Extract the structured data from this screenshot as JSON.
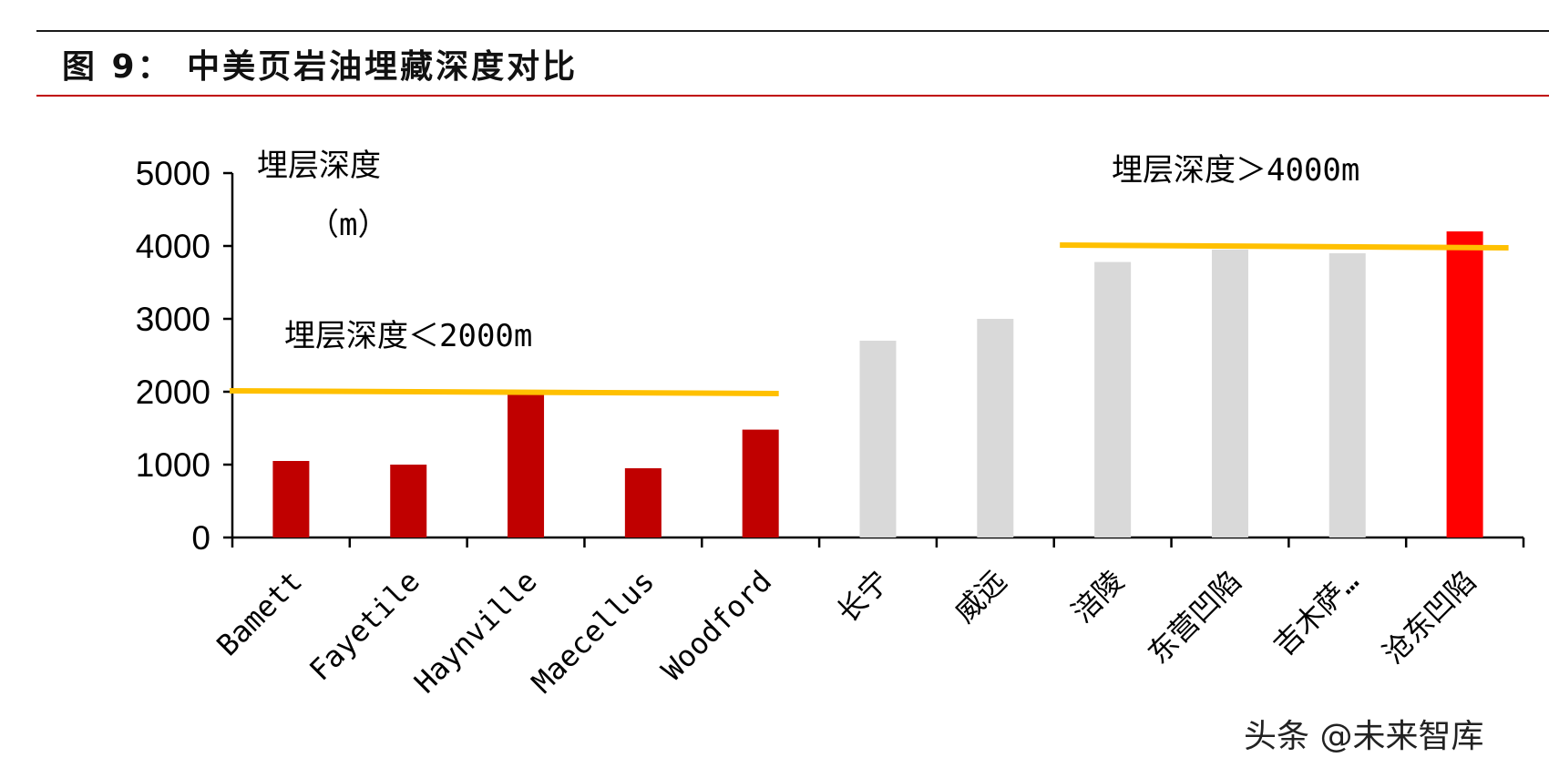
{
  "figure": {
    "title": "图 9： 中美页岩油埋藏深度对比"
  },
  "chart_data": {
    "type": "bar",
    "categories": [
      "Bamett",
      "Fayetile",
      "Haynville",
      "Maecellus",
      "Woodford",
      "长宁",
      "威远",
      "涪陵",
      "东营凹陷",
      "吉木萨…",
      "沧东凹陷"
    ],
    "values": [
      1050,
      1000,
      2000,
      950,
      1480,
      2700,
      3000,
      3780,
      3950,
      3900,
      4200
    ],
    "bar_colors": [
      "#c00000",
      "#c00000",
      "#c00000",
      "#c00000",
      "#c00000",
      "#d9d9d9",
      "#d9d9d9",
      "#d9d9d9",
      "#d9d9d9",
      "#d9d9d9",
      "#ff0000"
    ],
    "ylim": [
      0,
      5000
    ],
    "yticks": [
      "0",
      "1000",
      "2000",
      "3000",
      "4000",
      "5000"
    ],
    "ylabel_line1": "埋层深度",
    "ylabel_line2": "（m）",
    "reference_lines": [
      {
        "y": 2000,
        "from_category": 0,
        "to_category": 4,
        "color": "#ffc000"
      },
      {
        "y": 4000,
        "from_category": 7,
        "to_category": 10,
        "color": "#ffc000"
      }
    ],
    "annotations": {
      "shallow": "埋层深度＜2000m",
      "deep": "埋层深度＞4000m"
    },
    "grid": false,
    "legend": "none"
  },
  "watermark": "头条 @未来智库"
}
